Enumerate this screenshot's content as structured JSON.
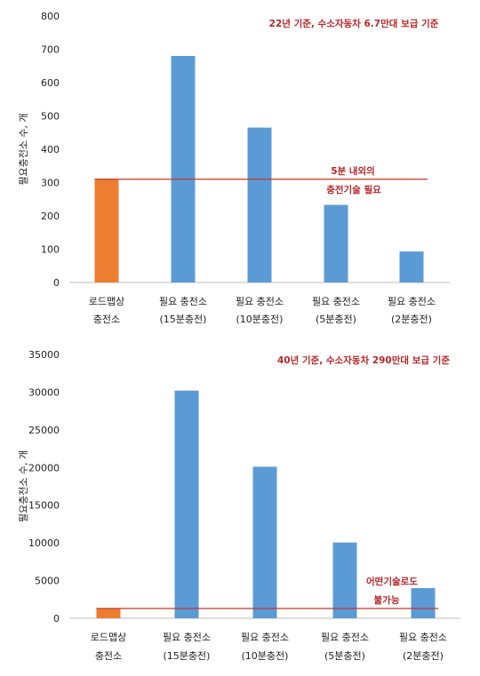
{
  "chart_data": [
    {
      "type": "bar",
      "categories": [
        [
          "로드맵상",
          "충전소"
        ],
        [
          "필요 충전소",
          "(15분충전)"
        ],
        [
          "필요 충전소",
          "(10분충전)"
        ],
        [
          "필요 충전소",
          "(5분충전)"
        ],
        [
          "필요 충전소",
          "(2분충전)"
        ]
      ],
      "values": [
        310,
        680,
        465,
        233,
        93
      ],
      "bar_colors": [
        "#ed7d31",
        "#5b9bd5",
        "#5b9bd5",
        "#5b9bd5",
        "#5b9bd5"
      ],
      "ylim": [
        0,
        800
      ],
      "yticks": [
        0,
        100,
        200,
        300,
        400,
        500,
        600,
        700,
        800
      ],
      "ylabel": "필요충전소 수, 개",
      "reference_line": {
        "value": 310,
        "color": "#c0392b"
      },
      "annotations": [
        "22년 기준, 수소자동차 6.7만대 보급 기준",
        "5분 내외의",
        "충전기술 필요"
      ],
      "grid": false
    },
    {
      "type": "bar",
      "categories": [
        [
          "로드맵상",
          "충전소"
        ],
        [
          "필요 충전소",
          "(15분충전)"
        ],
        [
          "필요 충전소",
          "(10분충전)"
        ],
        [
          "필요 충전소",
          "(5분충전)"
        ],
        [
          "필요 충전소",
          "(2분충전)"
        ]
      ],
      "values": [
        1300,
        30200,
        20100,
        10050,
        4000
      ],
      "bar_colors": [
        "#ed7d31",
        "#5b9bd5",
        "#5b9bd5",
        "#5b9bd5",
        "#5b9bd5"
      ],
      "ylim": [
        0,
        35000
      ],
      "yticks": [
        0,
        5000,
        10000,
        15000,
        20000,
        25000,
        30000,
        35000
      ],
      "ylabel": "필요충전소 수, 개",
      "reference_line": {
        "value": 1300,
        "color": "#c0392b"
      },
      "annotations": [
        "40년 기준, 수소자동차 290만대 보급 기준",
        "어떤기술로도",
        "불가능"
      ],
      "grid": false
    }
  ]
}
